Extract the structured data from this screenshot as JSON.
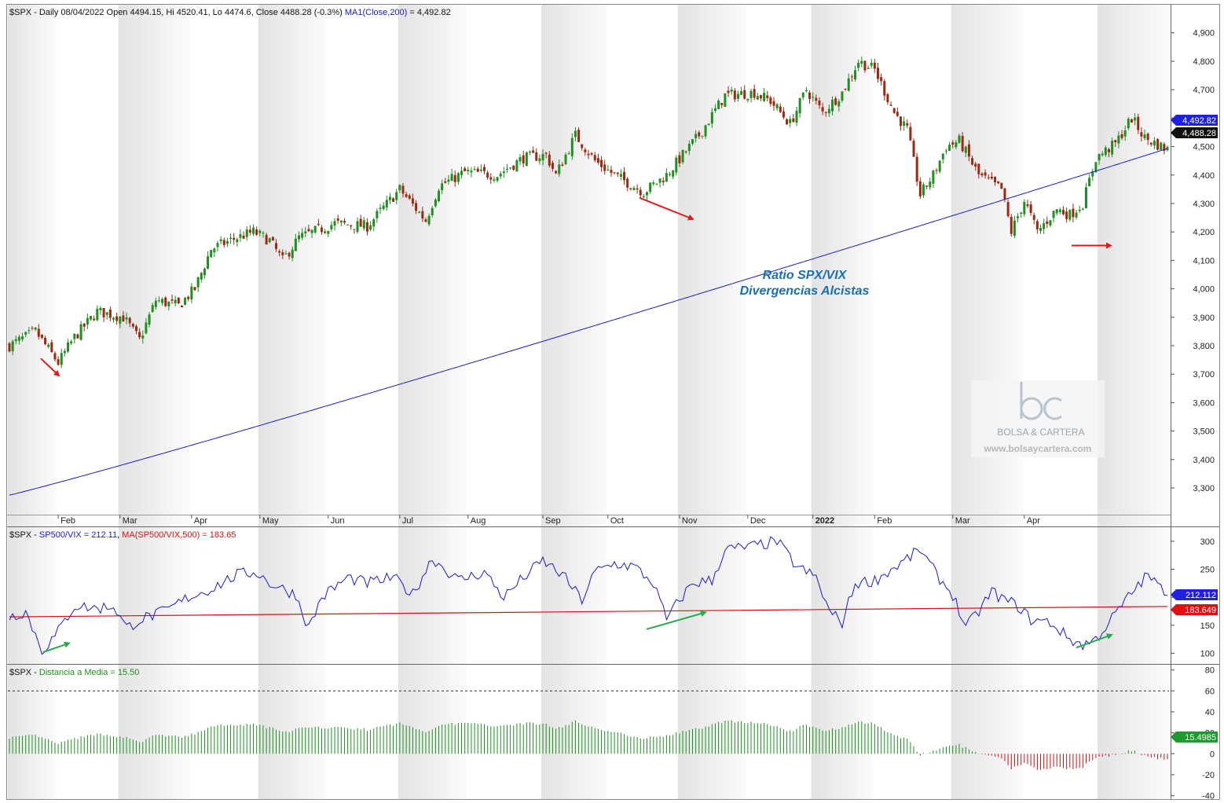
{
  "colors": {
    "up": "#1f8f1f",
    "down": "#9a2a12",
    "ma": "#1a1ad0",
    "ratio": "#1a1ad0",
    "ratio_ma": "#dd1111",
    "hist_pos": "#1f8f1f",
    "hist_neg": "#cc1111",
    "annotation": "#1a6fb0",
    "arrow_red": "#e01b1b",
    "arrow_green": "#2aa84a",
    "label_blue_bg": "#2020e0",
    "label_black_bg": "#111111",
    "label_red_bg": "#dd1111",
    "label_green_bg": "#1f9a2f"
  },
  "chart_data": [
    {
      "type": "candlestick",
      "header": {
        "symbol": "$SPX - Daily 08/04/2022 Open 4494.15, Hi 4520.41, Lo 4474.6, Close 4488.28 (-0.3%)",
        "ma_label": "MA1(Close,200)",
        "ma_value": "= 4,492.82"
      },
      "ylim": [
        3220,
        4960
      ],
      "yticks": [
        "4,900",
        "4,800",
        "4,700",
        "4,600",
        "4,500",
        "4,400",
        "4,300",
        "4,200",
        "4,100",
        "4,000",
        "3,900",
        "3,800",
        "3,700",
        "3,600",
        "3,500",
        "3,400",
        "3,300"
      ],
      "ytick_values": [
        4900,
        4800,
        4700,
        4600,
        4500,
        4400,
        4300,
        4200,
        4100,
        4000,
        3900,
        3800,
        3700,
        3600,
        3500,
        3400,
        3300
      ],
      "months": [
        "Feb",
        "Mar",
        "Apr",
        "May",
        "Jun",
        "Jul",
        "Aug",
        "Sep",
        "Oct",
        "Nov",
        "Dec",
        "2022",
        "Feb",
        "Mar",
        "Apr"
      ],
      "price_anchors": [
        [
          0,
          3800
        ],
        [
          8,
          3850
        ],
        [
          15,
          3740
        ],
        [
          20,
          3830
        ],
        [
          27,
          3920
        ],
        [
          35,
          3900
        ],
        [
          40,
          3820
        ],
        [
          45,
          3960
        ],
        [
          52,
          3940
        ],
        [
          57,
          4000
        ],
        [
          62,
          4140
        ],
        [
          70,
          4180
        ],
        [
          75,
          4200
        ],
        [
          80,
          4170
        ],
        [
          84,
          4100
        ],
        [
          89,
          4180
        ],
        [
          100,
          4230
        ],
        [
          110,
          4220
        ],
        [
          120,
          4350
        ],
        [
          128,
          4240
        ],
        [
          132,
          4360
        ],
        [
          140,
          4410
        ],
        [
          150,
          4400
        ],
        [
          158,
          4460
        ],
        [
          165,
          4470
        ],
        [
          168,
          4400
        ],
        [
          174,
          4540
        ],
        [
          180,
          4450
        ],
        [
          186,
          4400
        ],
        [
          195,
          4340
        ],
        [
          202,
          4400
        ],
        [
          212,
          4540
        ],
        [
          220,
          4680
        ],
        [
          229,
          4690
        ],
        [
          234,
          4660
        ],
        [
          240,
          4580
        ],
        [
          245,
          4700
        ],
        [
          250,
          4620
        ],
        [
          256,
          4690
        ],
        [
          261,
          4800
        ],
        [
          266,
          4770
        ],
        [
          272,
          4620
        ],
        [
          276,
          4560
        ],
        [
          280,
          4330
        ],
        [
          284,
          4400
        ],
        [
          288,
          4500
        ],
        [
          292,
          4520
        ],
        [
          298,
          4400
        ],
        [
          305,
          4350
        ],
        [
          308,
          4200
        ],
        [
          312,
          4310
        ],
        [
          316,
          4200
        ],
        [
          322,
          4280
        ],
        [
          326,
          4260
        ],
        [
          330,
          4300
        ],
        [
          334,
          4460
        ],
        [
          340,
          4510
        ],
        [
          345,
          4600
        ],
        [
          349,
          4530
        ],
        [
          356,
          4490
        ]
      ],
      "ma200": {
        "start": 3275,
        "end": 4492.82
      },
      "last_values": {
        "ma": "4,492.82",
        "close": "4,488.28"
      },
      "annotations": [
        "Ratio SPX/VIX",
        "Divergencias Alcistas"
      ],
      "watermark": {
        "brand": "BOLSA & CARTERA",
        "url": "www.bolsaycartera.com"
      }
    },
    {
      "type": "line",
      "header": {
        "symbol": "$SPX - ",
        "series_label": "SP500/VIX = 212.11",
        "ma_label": "MA(SP500/VIX,500) = 183.65"
      },
      "ylim": [
        88,
        318
      ],
      "yticks": [
        "300",
        "250",
        "200",
        "150",
        "100"
      ],
      "ytick_values": [
        300,
        250,
        200,
        150,
        100
      ],
      "ratio_anchors": [
        [
          0,
          165
        ],
        [
          5,
          175
        ],
        [
          10,
          105
        ],
        [
          14,
          130
        ],
        [
          20,
          185
        ],
        [
          27,
          180
        ],
        [
          32,
          185
        ],
        [
          36,
          145
        ],
        [
          40,
          160
        ],
        [
          48,
          175
        ],
        [
          55,
          200
        ],
        [
          62,
          215
        ],
        [
          70,
          240
        ],
        [
          76,
          245
        ],
        [
          80,
          225
        ],
        [
          88,
          205
        ],
        [
          92,
          145
        ],
        [
          96,
          200
        ],
        [
          104,
          235
        ],
        [
          110,
          225
        ],
        [
          118,
          235
        ],
        [
          124,
          205
        ],
        [
          130,
          270
        ],
        [
          138,
          230
        ],
        [
          146,
          245
        ],
        [
          152,
          200
        ],
        [
          158,
          235
        ],
        [
          164,
          265
        ],
        [
          170,
          240
        ],
        [
          176,
          195
        ],
        [
          180,
          245
        ],
        [
          186,
          260
        ],
        [
          192,
          255
        ],
        [
          198,
          225
        ],
        [
          202,
          160
        ],
        [
          206,
          195
        ],
        [
          210,
          225
        ],
        [
          216,
          230
        ],
        [
          220,
          285
        ],
        [
          228,
          290
        ],
        [
          236,
          300
        ],
        [
          242,
          255
        ],
        [
          248,
          235
        ],
        [
          252,
          175
        ],
        [
          256,
          155
        ],
        [
          260,
          225
        ],
        [
          266,
          230
        ],
        [
          274,
          260
        ],
        [
          280,
          285
        ],
        [
          285,
          240
        ],
        [
          290,
          205
        ],
        [
          294,
          145
        ],
        [
          298,
          175
        ],
        [
          302,
          210
        ],
        [
          306,
          195
        ],
        [
          310,
          185
        ],
        [
          314,
          160
        ],
        [
          320,
          155
        ],
        [
          326,
          125
        ],
        [
          330,
          115
        ],
        [
          334,
          125
        ],
        [
          338,
          155
        ],
        [
          342,
          185
        ],
        [
          346,
          215
        ],
        [
          350,
          240
        ],
        [
          354,
          215
        ],
        [
          356,
          212
        ]
      ],
      "ma_line": {
        "start": 165,
        "end": 183.65
      },
      "last_values": {
        "ratio": "212.112",
        "ma": "183.649"
      }
    },
    {
      "type": "bar",
      "header": {
        "symbol": "$SPX - ",
        "series_label": "Distancia a Media = 15.50"
      },
      "ylim": [
        -41,
        82
      ],
      "yticks": [
        "80",
        "60",
        "40",
        "20",
        "0",
        "-20",
        "-40"
      ],
      "ytick_values": [
        80,
        60,
        40,
        20,
        0,
        -20,
        -40
      ],
      "dashed_level": 60,
      "last_value": "15.4985"
    }
  ],
  "arrows": [
    {
      "color": "red",
      "panel": 0,
      "from": [
        52,
        3755
      ],
      "to": [
        75,
        3695
      ]
    },
    {
      "color": "red",
      "panel": 0,
      "from": [
        814,
        4320
      ],
      "to": [
        882,
        4245
      ]
    },
    {
      "color": "red",
      "panel": 0,
      "from": [
        1364,
        4152
      ],
      "to": [
        1414,
        4152
      ]
    },
    {
      "color": "green",
      "panel": 1,
      "from": [
        55,
        102
      ],
      "to": [
        88,
        118
      ]
    },
    {
      "color": "green",
      "panel": 1,
      "from": [
        823,
        143
      ],
      "to": [
        898,
        173
      ]
    },
    {
      "color": "green",
      "panel": 1,
      "from": [
        1370,
        110
      ],
      "to": [
        1415,
        133
      ]
    }
  ]
}
